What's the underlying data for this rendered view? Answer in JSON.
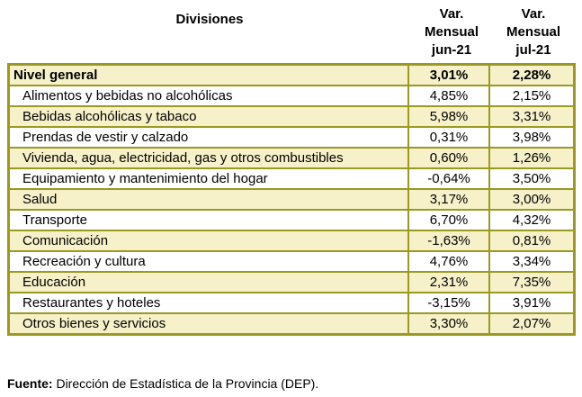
{
  "header": {
    "divisions": "Divisiones",
    "col1": [
      "Var.",
      "Mensual",
      "jun-21"
    ],
    "col2": [
      "Var.",
      "Mensual",
      "jul-21"
    ]
  },
  "rows": [
    {
      "label": "Nivel general",
      "jun": "3,01%",
      "jul": "2,28%"
    },
    {
      "label": "Alimentos y bebidas no alcohólicas",
      "jun": "4,85%",
      "jul": "2,15%"
    },
    {
      "label": "Bebidas alcohólicas y tabaco",
      "jun": "5,98%",
      "jul": "3,31%"
    },
    {
      "label": "Prendas de vestir y calzado",
      "jun": "0,31%",
      "jul": "3,98%"
    },
    {
      "label": "Vivienda, agua, electricidad, gas y otros combustibles",
      "jun": "0,60%",
      "jul": "1,26%"
    },
    {
      "label": "Equipamiento y mantenimiento del hogar",
      "jun": "-0,64%",
      "jul": "3,50%"
    },
    {
      "label": "Salud",
      "jun": "3,17%",
      "jul": "3,00%"
    },
    {
      "label": "Transporte",
      "jun": "6,70%",
      "jul": "4,32%"
    },
    {
      "label": "Comunicación",
      "jun": "-1,63%",
      "jul": "0,81%"
    },
    {
      "label": "Recreación y cultura",
      "jun": "4,76%",
      "jul": "3,34%"
    },
    {
      "label": "Educación",
      "jun": "2,31%",
      "jul": "7,35%"
    },
    {
      "label": "Restaurantes y hoteles",
      "jun": "-3,15%",
      "jul": "3,91%"
    },
    {
      "label": "Otros bienes y servicios",
      "jun": "3,30%",
      "jul": "2,07%"
    }
  ],
  "source": {
    "label": "Fuente:",
    "text": " Dirección de Estadística de la Provincia (DEP)."
  },
  "colors": {
    "border": "#9a9a22",
    "fill": "#f6f1c9"
  }
}
